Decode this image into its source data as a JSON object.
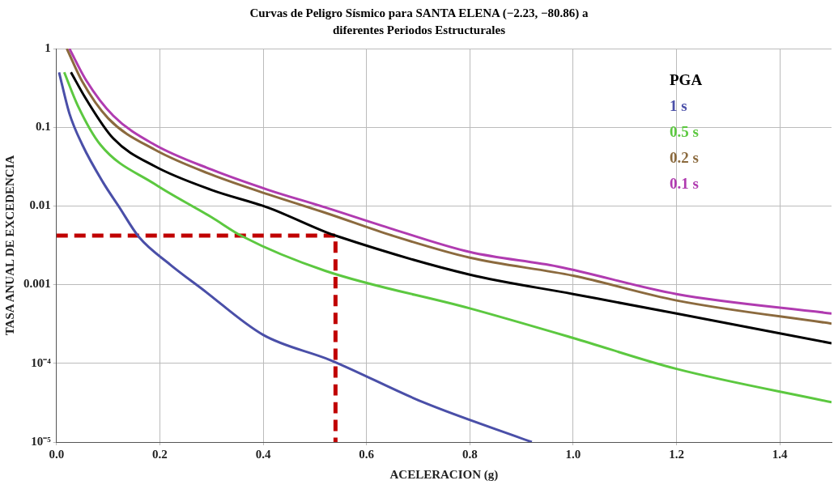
{
  "chart_data": {
    "type": "line",
    "title": "Curvas de Peligro Sísmico para SANTA ELENA (−2.23, −80.86) a\ndiferentes Periodos Estructurales",
    "xlabel": "ACELERACION (g)",
    "ylabel": "TASA ANUAL DE EXCEDENCIA",
    "log": "y",
    "grid": true,
    "legend": "top right",
    "marker": "none",
    "line_style": "solid",
    "xlim": [
      0,
      1.5
    ],
    "xticks": [
      {
        "value": 0,
        "label": "0.0"
      },
      {
        "value": 0.2,
        "label": "0.2"
      },
      {
        "value": 0.4,
        "label": "0.4"
      },
      {
        "value": 0.6,
        "label": "0.6"
      },
      {
        "value": 0.8,
        "label": "0.8"
      },
      {
        "value": 1,
        "label": "1.0"
      },
      {
        "value": 1.2,
        "label": "1.2"
      },
      {
        "value": 1.4,
        "label": "1.4"
      }
    ],
    "ylim": [
      1e-05,
      1
    ],
    "yticks": [
      {
        "value": 1e-05,
        "label": "10⁻⁵"
      },
      {
        "value": 0.0001,
        "label": "10⁻⁴"
      },
      0.001,
      0.01,
      0.1,
      1
    ],
    "series": [
      {
        "name": "PGA",
        "color": "#000000",
        "x": [
          0.028,
          0.057,
          0.11,
          0.19,
          0.3,
          0.41,
          0.52,
          0.54,
          0.8,
          1.0,
          1.2,
          1.5
        ],
        "values": [
          0.5,
          0.23,
          0.072,
          0.032,
          0.016,
          0.0095,
          0.0047,
          0.0042,
          0.00134,
          0.00076,
          0.00043,
          0.00018
        ]
      },
      {
        "name": "1 s",
        "color": "#4a4fa8",
        "x": [
          0.005,
          0.025,
          0.05,
          0.09,
          0.12,
          0.16,
          0.22,
          0.283,
          0.4,
          0.53,
          0.71,
          0.92
        ],
        "values": [
          0.5,
          0.15,
          0.06,
          0.02,
          0.01,
          0.004,
          0.0018,
          0.00087,
          0.00023,
          0.00011,
          3.2e-05,
          1e-05
        ]
      },
      {
        "name": "0.5 s",
        "color": "#5cc840",
        "x": [
          0.015,
          0.041,
          0.085,
          0.19,
          0.3,
          0.36,
          0.52,
          0.8,
          1.0,
          1.2,
          1.5
        ],
        "values": [
          0.5,
          0.19,
          0.06,
          0.019,
          0.0072,
          0.0041,
          0.0015,
          0.0005,
          0.00021,
          8.5e-05,
          3.2e-05
        ]
      },
      {
        "name": "0.2 s",
        "color": "#8b6a3e",
        "x": [
          0.02,
          0.05,
          0.1,
          0.19,
          0.3,
          0.41,
          0.52,
          0.65,
          0.8,
          1.0,
          1.2,
          1.5
        ],
        "values": [
          1,
          0.38,
          0.13,
          0.052,
          0.025,
          0.014,
          0.0082,
          0.0042,
          0.0022,
          0.0013,
          0.00063,
          0.00032
        ]
      },
      {
        "name": "0.1 s",
        "color": "#b03bb0",
        "x": [
          0.025,
          0.057,
          0.11,
          0.19,
          0.3,
          0.41,
          0.52,
          0.65,
          0.8,
          0.97,
          1.2,
          1.5
        ],
        "values": [
          1,
          0.4,
          0.14,
          0.06,
          0.029,
          0.016,
          0.0096,
          0.0051,
          0.0026,
          0.0017,
          0.00076,
          0.00043
        ]
      },
      {
        "color": "#c00000",
        "line_style": "dashed",
        "x": [
          0,
          0.54,
          0.54
        ],
        "values": [
          0.0042,
          0.0042,
          1e-05
        ]
      }
    ]
  }
}
